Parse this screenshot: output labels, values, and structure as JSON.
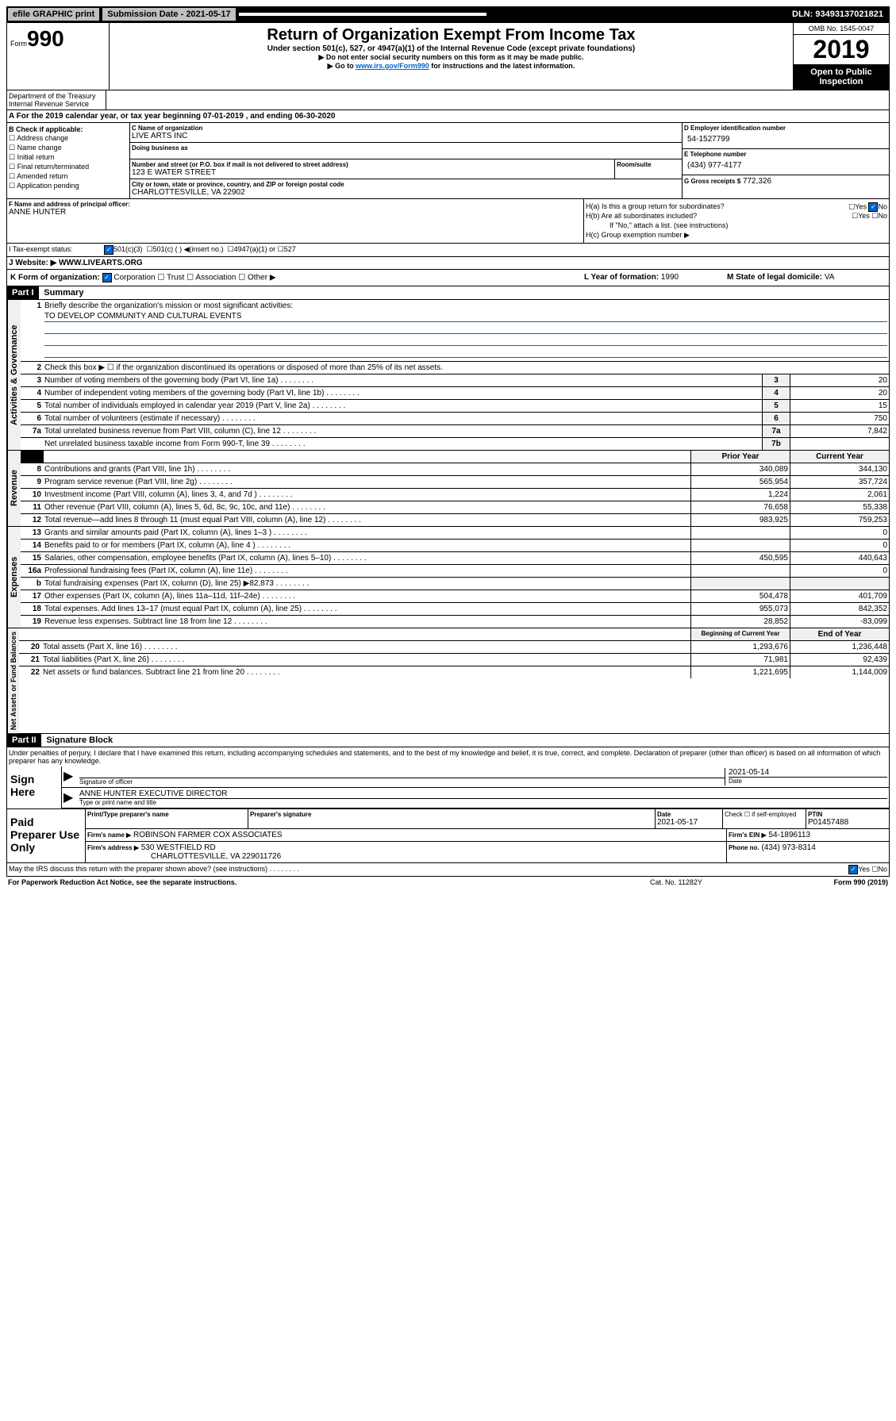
{
  "topbar": {
    "efile": "efile GRAPHIC print",
    "submission_label": "Submission Date - 2021-05-17",
    "dln": "DLN: 93493137021821"
  },
  "header": {
    "form_prefix": "Form",
    "form_number": "990",
    "title": "Return of Organization Exempt From Income Tax",
    "subtitle": "Under section 501(c), 527, or 4947(a)(1) of the Internal Revenue Code (except private foundations)",
    "instr1": "▶ Do not enter social security numbers on this form as it may be made public.",
    "instr2_prefix": "▶ Go to ",
    "instr2_link": "www.irs.gov/Form990",
    "instr2_suffix": " for instructions and the latest information.",
    "omb": "OMB No. 1545-0047",
    "year": "2019",
    "open_public": "Open to Public Inspection",
    "dept": "Department of the Treasury Internal Revenue Service"
  },
  "tax_year": "A   For the 2019 calendar year, or tax year beginning 07-01-2019    , and ending 06-30-2020",
  "checkboxes": {
    "label": "B Check if applicable:",
    "items": [
      "Address change",
      "Name change",
      "Initial return",
      "Final return/terminated",
      "Amended return",
      "Application pending"
    ]
  },
  "org": {
    "name_label": "C Name of organization",
    "name": "LIVE ARTS INC",
    "dba_label": "Doing business as",
    "street_label": "Number and street (or P.O. box if mail is not delivered to street address)",
    "street": "123 E WATER STREET",
    "room_label": "Room/suite",
    "city_label": "City or town, state or province, country, and ZIP or foreign postal code",
    "city": "CHARLOTTESVILLE, VA  22902"
  },
  "ein": {
    "label": "D Employer identification number",
    "value": "54-1527799"
  },
  "phone": {
    "label": "E Telephone number",
    "value": "(434) 977-4177"
  },
  "gross": {
    "label": "G Gross receipts $",
    "value": "772,326"
  },
  "officer": {
    "label": "F  Name and address of principal officer:",
    "name": "ANNE HUNTER"
  },
  "h": {
    "a": "H(a)  Is this a group return for subordinates?",
    "b": "H(b)  Are all subordinates included?",
    "b_note": "If \"No,\" attach a list. (see instructions)",
    "c": "H(c)  Group exemption number ▶",
    "yes": "Yes",
    "no": "No"
  },
  "tax_status": {
    "label": "I   Tax-exempt status:",
    "opt1": "501(c)(3)",
    "opt2": "501(c) (  ) ◀(insert no.)",
    "opt3": "4947(a)(1) or",
    "opt4": "527"
  },
  "website": {
    "label": "J   Website: ▶",
    "value": "WWW.LIVEARTS.ORG"
  },
  "form_org": {
    "label": "K Form of organization:",
    "corp": "Corporation",
    "trust": "Trust",
    "assoc": "Association",
    "other": "Other ▶",
    "year_label": "L Year of formation:",
    "year": "1990",
    "state_label": "M State of legal domicile:",
    "state": "VA"
  },
  "part1": {
    "header": "Part I",
    "title": "Summary"
  },
  "governance": {
    "label": "Activities & Governance",
    "line1": "Briefly describe the organization's mission or most significant activities:",
    "mission": "TO DEVELOP COMMUNITY AND CULTURAL EVENTS",
    "line2": "Check this box ▶ ☐ if the organization discontinued its operations or disposed of more than 25% of its net assets.",
    "line3": "Number of voting members of the governing body (Part VI, line 1a)",
    "line4": "Number of independent voting members of the governing body (Part VI, line 1b)",
    "line5": "Total number of individuals employed in calendar year 2019 (Part V, line 2a)",
    "line6": "Total number of volunteers (estimate if necessary)",
    "line7a": "Total unrelated business revenue from Part VIII, column (C), line 12",
    "line7b": "Net unrelated business taxable income from Form 990-T, line 39",
    "vals": {
      "3": "20",
      "4": "20",
      "5": "15",
      "6": "750",
      "7a": "7,842",
      "7b": ""
    }
  },
  "revenue": {
    "label": "Revenue",
    "prior_header": "Prior Year",
    "current_header": "Current Year",
    "lines": [
      {
        "n": "8",
        "t": "Contributions and grants (Part VIII, line 1h)",
        "p": "340,089",
        "c": "344,130"
      },
      {
        "n": "9",
        "t": "Program service revenue (Part VIII, line 2g)",
        "p": "565,954",
        "c": "357,724"
      },
      {
        "n": "10",
        "t": "Investment income (Part VIII, column (A), lines 3, 4, and 7d )",
        "p": "1,224",
        "c": "2,061"
      },
      {
        "n": "11",
        "t": "Other revenue (Part VIII, column (A), lines 5, 6d, 8c, 9c, 10c, and 11e)",
        "p": "76,658",
        "c": "55,338"
      },
      {
        "n": "12",
        "t": "Total revenue—add lines 8 through 11 (must equal Part VIII, column (A), line 12)",
        "p": "983,925",
        "c": "759,253"
      }
    ]
  },
  "expenses": {
    "label": "Expenses",
    "lines": [
      {
        "n": "13",
        "t": "Grants and similar amounts paid (Part IX, column (A), lines 1–3 )",
        "p": "",
        "c": "0"
      },
      {
        "n": "14",
        "t": "Benefits paid to or for members (Part IX, column (A), line 4 )",
        "p": "",
        "c": "0"
      },
      {
        "n": "15",
        "t": "Salaries, other compensation, employee benefits (Part IX, column (A), lines 5–10)",
        "p": "450,595",
        "c": "440,643"
      },
      {
        "n": "16a",
        "t": "Professional fundraising fees (Part IX, column (A), line 11e)",
        "p": "",
        "c": "0"
      },
      {
        "n": "b",
        "t": "Total fundraising expenses (Part IX, column (D), line 25) ▶82,873",
        "p": "",
        "c": ""
      },
      {
        "n": "17",
        "t": "Other expenses (Part IX, column (A), lines 11a–11d, 11f–24e)",
        "p": "504,478",
        "c": "401,709"
      },
      {
        "n": "18",
        "t": "Total expenses. Add lines 13–17 (must equal Part IX, column (A), line 25)",
        "p": "955,073",
        "c": "842,352"
      },
      {
        "n": "19",
        "t": "Revenue less expenses. Subtract line 18 from line 12",
        "p": "28,852",
        "c": "-83,099"
      }
    ]
  },
  "netassets": {
    "label": "Net Assets or Fund Balances",
    "begin_header": "Beginning of Current Year",
    "end_header": "End of Year",
    "lines": [
      {
        "n": "20",
        "t": "Total assets (Part X, line 16)",
        "p": "1,293,676",
        "c": "1,236,448"
      },
      {
        "n": "21",
        "t": "Total liabilities (Part X, line 26)",
        "p": "71,981",
        "c": "92,439"
      },
      {
        "n": "22",
        "t": "Net assets or fund balances. Subtract line 21 from line 20",
        "p": "1,221,695",
        "c": "1,144,009"
      }
    ]
  },
  "part2": {
    "header": "Part II",
    "title": "Signature Block",
    "intro": "Under penalties of perjury, I declare that I have examined this return, including accompanying schedules and statements, and to the best of my knowledge and belief, it is true, correct, and complete. Declaration of preparer (other than officer) is based on all information of which preparer has any knowledge."
  },
  "sign": {
    "label": "Sign Here",
    "sig_label": "Signature of officer",
    "date": "2021-05-14",
    "date_label": "Date",
    "name": "ANNE HUNTER  EXECUTIVE DIRECTOR",
    "name_label": "Type or print name and title"
  },
  "preparer": {
    "label": "Paid Preparer Use Only",
    "print_label": "Print/Type preparer's name",
    "sig_label": "Preparer's signature",
    "date_label": "Date",
    "date": "2021-05-17",
    "check_label": "Check ☐ if self-employed",
    "ptin_label": "PTIN",
    "ptin": "P01457488",
    "firm_name_label": "Firm's name      ▶",
    "firm_name": "ROBINSON FARMER COX ASSOCIATES",
    "firm_ein_label": "Firm's EIN ▶",
    "firm_ein": "54-1896113",
    "firm_addr_label": "Firm's address ▶",
    "firm_addr": "530 WESTFIELD RD",
    "firm_city": "CHARLOTTESVILLE, VA  229011726",
    "phone_label": "Phone no.",
    "phone": "(434) 973-8314"
  },
  "footer": {
    "discuss": "May the IRS discuss this return with the preparer shown above? (see instructions)",
    "yes": "Yes",
    "no": "No",
    "paperwork": "For Paperwork Reduction Act Notice, see the separate instructions.",
    "cat": "Cat. No. 11282Y",
    "form": "Form 990 (2019)"
  }
}
